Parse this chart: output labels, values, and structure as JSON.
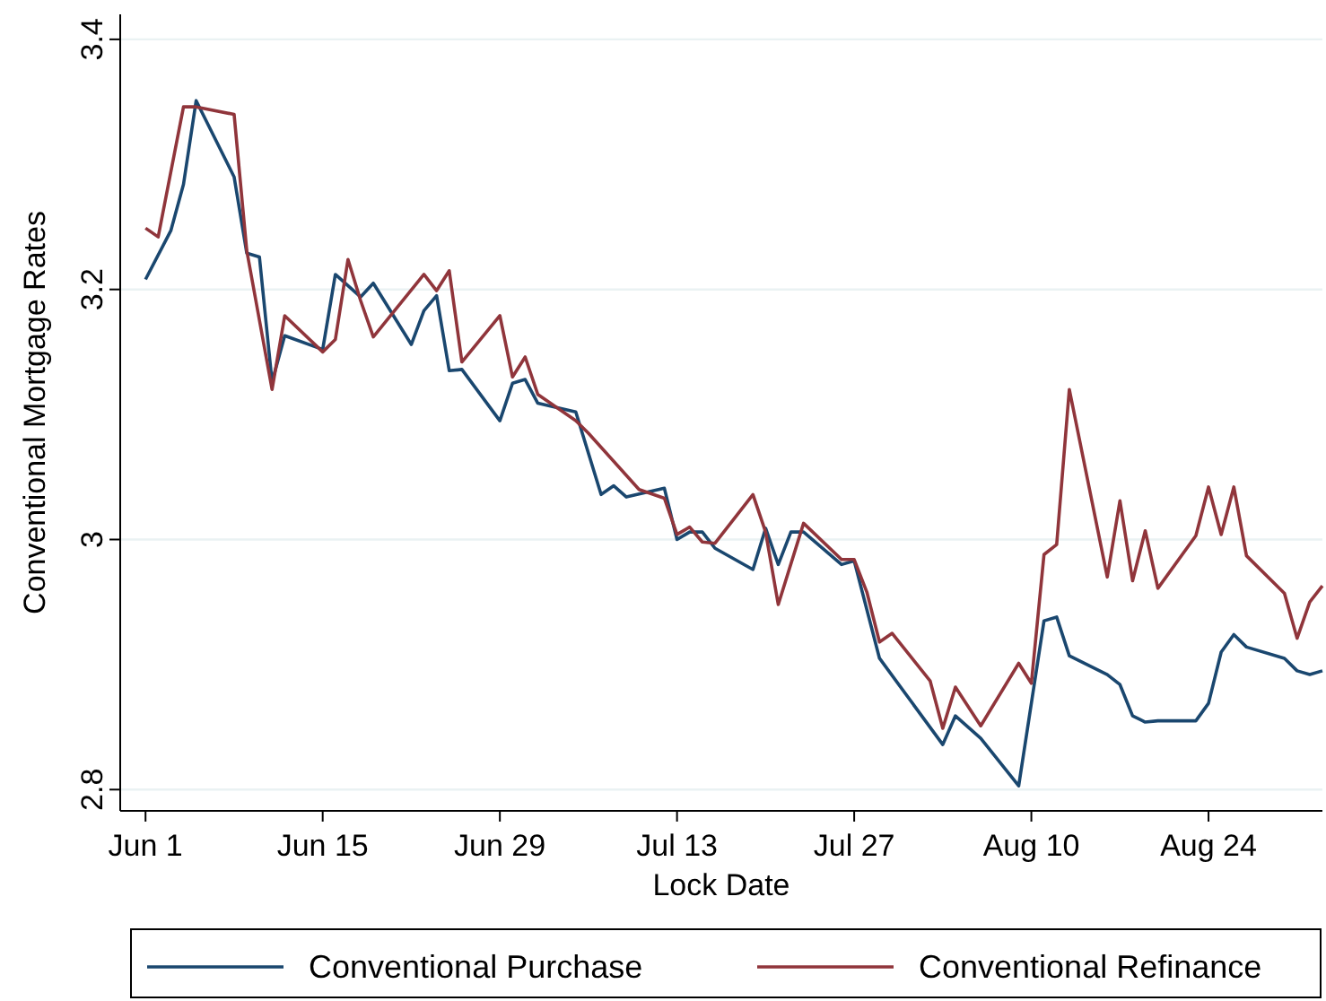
{
  "chart_data": {
    "type": "line",
    "xlabel": "Lock Date",
    "ylabel": "Conventional Mortgage Rates",
    "xlim": [
      "--05-30",
      "--09-02"
    ],
    "ylim": [
      2.783,
      3.42
    ],
    "xticks": [
      {
        "value": "--06-01",
        "label": "Jun 1"
      },
      {
        "value": "--06-15",
        "label": "Jun 15"
      },
      {
        "value": "--06-29",
        "label": "Jun 29"
      },
      {
        "value": "--07-13",
        "label": "Jul 13"
      },
      {
        "value": "--07-27",
        "label": "Jul 27"
      },
      {
        "value": "--08-10",
        "label": "Aug 10"
      },
      {
        "value": "--08-24",
        "label": "Aug 24"
      }
    ],
    "yticks": [
      2.8,
      3,
      3.2,
      3.4
    ],
    "grid": "y",
    "legend": "bottom",
    "line_style": "solid",
    "marker": "none",
    "series": [
      {
        "name": "Conventional Purchase",
        "color": "#1a476f",
        "x": [
          "--06-01",
          "--06-03",
          "--06-04",
          "--06-05",
          "--06-08",
          "--06-09",
          "--06-10",
          "--06-11",
          "--06-12",
          "--06-15",
          "--06-16",
          "--06-18",
          "--06-19",
          "--06-22",
          "--06-23",
          "--06-24",
          "--06-25",
          "--06-26",
          "--06-29",
          "--06-30",
          "--07-01",
          "--07-02",
          "--07-05",
          "--07-07",
          "--07-08",
          "--07-09",
          "--07-12",
          "--07-13",
          "--07-14",
          "--07-15",
          "--07-16",
          "--07-19",
          "--07-20",
          "--07-21",
          "--07-22",
          "--07-23",
          "--07-26",
          "--07-27",
          "--07-29",
          "--08-03",
          "--08-04",
          "--08-06",
          "--08-09",
          "--08-11",
          "--08-12",
          "--08-13",
          "--08-16",
          "--08-17",
          "--08-18",
          "--08-19",
          "--08-20",
          "--08-23",
          "--08-24",
          "--08-25",
          "--08-26",
          "--08-27",
          "--08-30",
          "--08-31",
          "--09-01",
          "--09-02"
        ],
        "values": [
          3.208,
          3.247,
          3.284,
          3.351,
          3.29,
          3.229,
          3.226,
          3.126,
          3.163,
          3.152,
          3.212,
          3.194,
          3.205,
          3.156,
          3.183,
          3.195,
          3.135,
          3.136,
          3.095,
          3.125,
          3.128,
          3.109,
          3.102,
          3.036,
          3.043,
          3.034,
          3.041,
          3.0,
          3.006,
          3.006,
          2.993,
          2.976,
          3.009,
          2.98,
          3.006,
          3.006,
          2.98,
          2.983,
          2.905,
          2.836,
          2.859,
          2.841,
          2.803,
          2.935,
          2.938,
          2.907,
          2.892,
          2.884,
          2.859,
          2.854,
          2.855,
          2.855,
          2.869,
          2.91,
          2.924,
          2.914,
          2.905,
          2.895,
          2.892,
          2.895
        ]
      },
      {
        "name": "Conventional Refinance",
        "color": "#90353b",
        "x": [
          "--06-01",
          "--06-02",
          "--06-04",
          "--06-05",
          "--06-08",
          "--06-09",
          "--06-11",
          "--06-12",
          "--06-15",
          "--06-16",
          "--06-17",
          "--06-18",
          "--06-19",
          "--06-23",
          "--06-24",
          "--06-25",
          "--06-26",
          "--06-29",
          "--06-30",
          "--07-01",
          "--07-02",
          "--07-05",
          "--07-06",
          "--07-10",
          "--07-12",
          "--07-13",
          "--07-14",
          "--07-15",
          "--07-16",
          "--07-19",
          "--07-20",
          "--07-21",
          "--07-23",
          "--07-26",
          "--07-27",
          "--07-28",
          "--07-29",
          "--07-30",
          "--08-02",
          "--08-03",
          "--08-04",
          "--08-06",
          "--08-09",
          "--08-10",
          "--08-11",
          "--08-12",
          "--08-13",
          "--08-16",
          "--08-17",
          "--08-18",
          "--08-19",
          "--08-20",
          "--08-23",
          "--08-24",
          "--08-25",
          "--08-26",
          "--08-27",
          "--08-30",
          "--08-31",
          "--09-01",
          "--09-02"
        ],
        "values": [
          3.249,
          3.242,
          3.346,
          3.346,
          3.34,
          3.231,
          3.12,
          3.179,
          3.15,
          3.16,
          3.224,
          3.191,
          3.162,
          3.212,
          3.199,
          3.215,
          3.142,
          3.179,
          3.13,
          3.146,
          3.116,
          3.095,
          3.085,
          3.04,
          3.033,
          3.004,
          3.01,
          2.998,
          2.997,
          3.036,
          3.006,
          2.948,
          3.013,
          2.984,
          2.984,
          2.958,
          2.918,
          2.925,
          2.887,
          2.849,
          2.882,
          2.851,
          2.901,
          2.885,
          2.988,
          2.996,
          3.12,
          2.97,
          3.031,
          2.967,
          3.007,
          2.961,
          3.003,
          3.042,
          3.004,
          3.042,
          2.987,
          2.957,
          2.921,
          2.95,
          2.963
        ]
      }
    ]
  }
}
